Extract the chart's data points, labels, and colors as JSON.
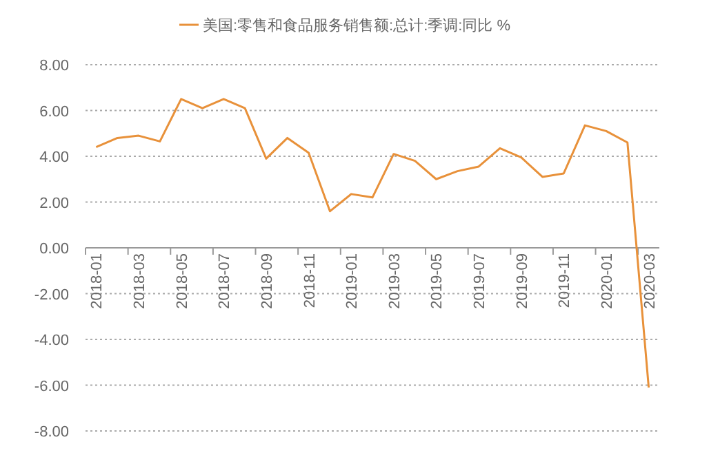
{
  "chart_data": {
    "type": "line",
    "categories": [
      "2018-01",
      null,
      "2018-03",
      null,
      "2018-05",
      null,
      "2018-07",
      null,
      "2018-09",
      null,
      "2018-11",
      null,
      "2019-01",
      null,
      "2019-03",
      null,
      "2019-05",
      null,
      "2019-07",
      null,
      "2019-09",
      null,
      "2019-11",
      null,
      "2020-01",
      null,
      "2020-03"
    ],
    "series": [
      {
        "name": "美国:零售和食品服务销售额:总计:季调:同比 %",
        "color": "#e8913a",
        "values": [
          4.4,
          4.8,
          4.9,
          4.65,
          6.5,
          6.1,
          6.5,
          6.1,
          3.9,
          4.8,
          4.15,
          1.6,
          2.35,
          2.2,
          4.1,
          3.8,
          3.0,
          3.35,
          3.55,
          4.35,
          3.95,
          3.1,
          3.25,
          5.35,
          5.1,
          4.6,
          -6.1
        ]
      }
    ],
    "ylim": [
      -8,
      8
    ],
    "yticks": [
      {
        "value": -8,
        "label": "-8.00"
      },
      {
        "value": -6,
        "label": "-6.00"
      },
      {
        "value": -4,
        "label": "-4.00"
      },
      {
        "value": -2,
        "label": "-2.00"
      },
      {
        "value": 0,
        "label": "0.00"
      },
      {
        "value": 2,
        "label": "2.00"
      },
      {
        "value": 4,
        "label": "4.00"
      },
      {
        "value": 6,
        "label": "6.00"
      },
      {
        "value": 8,
        "label": "8.00"
      }
    ],
    "grid": "y",
    "legend": "top",
    "marker": "none",
    "line_style": "solid"
  }
}
